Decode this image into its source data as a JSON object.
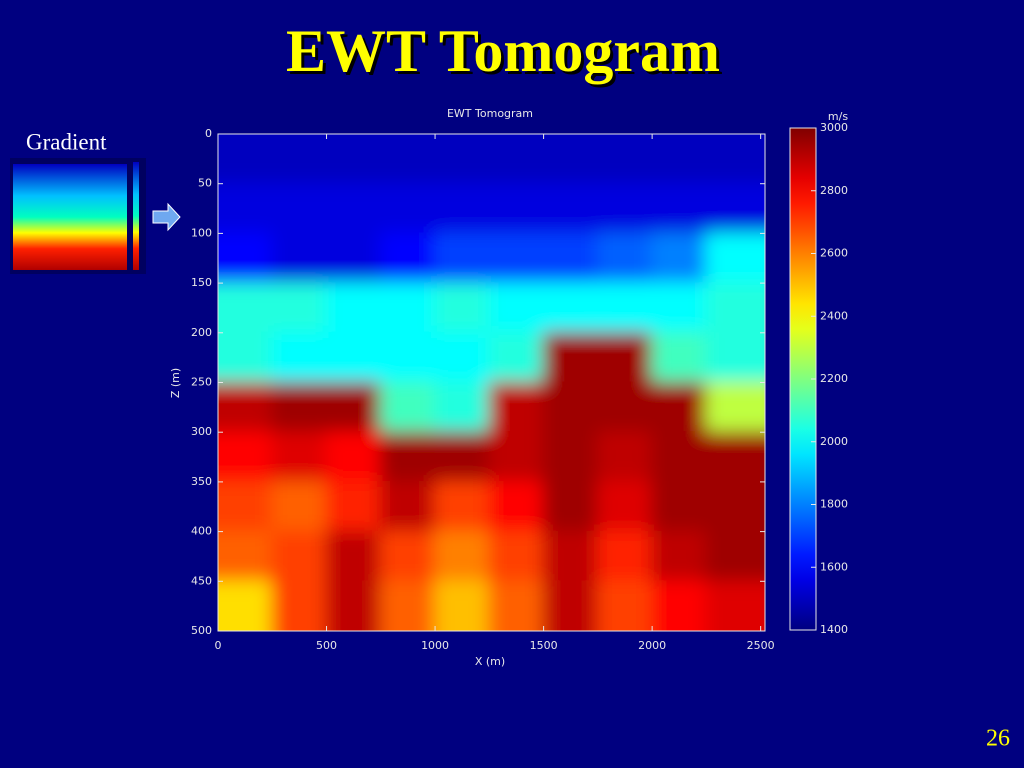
{
  "title": "EWT Tomogram",
  "inset_label": "Gradient",
  "page_number": "26",
  "chart_data": {
    "type": "heatmap",
    "title": "EWT Tomogram",
    "xlabel": "X (m)",
    "ylabel": "Z (m)",
    "colorbar_label": "m/s",
    "colormap": "jet",
    "x": [
      125,
      375,
      625,
      875,
      1125,
      1375,
      1625,
      1875,
      2125,
      2375
    ],
    "y": [
      25,
      75,
      125,
      175,
      225,
      275,
      325,
      375,
      425,
      475
    ],
    "values": [
      [
        1500,
        1500,
        1500,
        1500,
        1500,
        1500,
        1500,
        1500,
        1500,
        1500
      ],
      [
        1550,
        1550,
        1550,
        1550,
        1550,
        1550,
        1550,
        1550,
        1550,
        1550
      ],
      [
        1600,
        1550,
        1550,
        1600,
        1700,
        1700,
        1700,
        1750,
        1800,
        2000
      ],
      [
        2050,
        2050,
        2000,
        2000,
        2050,
        2000,
        2000,
        2000,
        2000,
        2050
      ],
      [
        2050,
        2000,
        2000,
        2000,
        2000,
        2050,
        2950,
        2950,
        2100,
        2050
      ],
      [
        2900,
        2950,
        2950,
        2100,
        2050,
        2900,
        2950,
        2950,
        2950,
        2300
      ],
      [
        2800,
        2850,
        2800,
        2950,
        2950,
        2900,
        2950,
        2900,
        2950,
        2950
      ],
      [
        2700,
        2650,
        2750,
        2900,
        2700,
        2800,
        2950,
        2850,
        2950,
        2950
      ],
      [
        2650,
        2700,
        2900,
        2700,
        2600,
        2700,
        2900,
        2750,
        2900,
        2950
      ],
      [
        2450,
        2700,
        2900,
        2650,
        2500,
        2650,
        2900,
        2700,
        2800,
        2850
      ]
    ],
    "xlim": [
      0,
      2520
    ],
    "ylim": [
      0,
      500
    ],
    "yreverse": true,
    "xticks": [
      0,
      500,
      1000,
      1500,
      2000,
      2500
    ],
    "yticks": [
      0,
      50,
      100,
      150,
      200,
      250,
      300,
      350,
      400,
      450,
      500
    ],
    "clim": [
      1400,
      3000
    ],
    "cticks": [
      1400,
      1600,
      1800,
      2000,
      2200,
      2400,
      2600,
      2800,
      3000
    ]
  }
}
